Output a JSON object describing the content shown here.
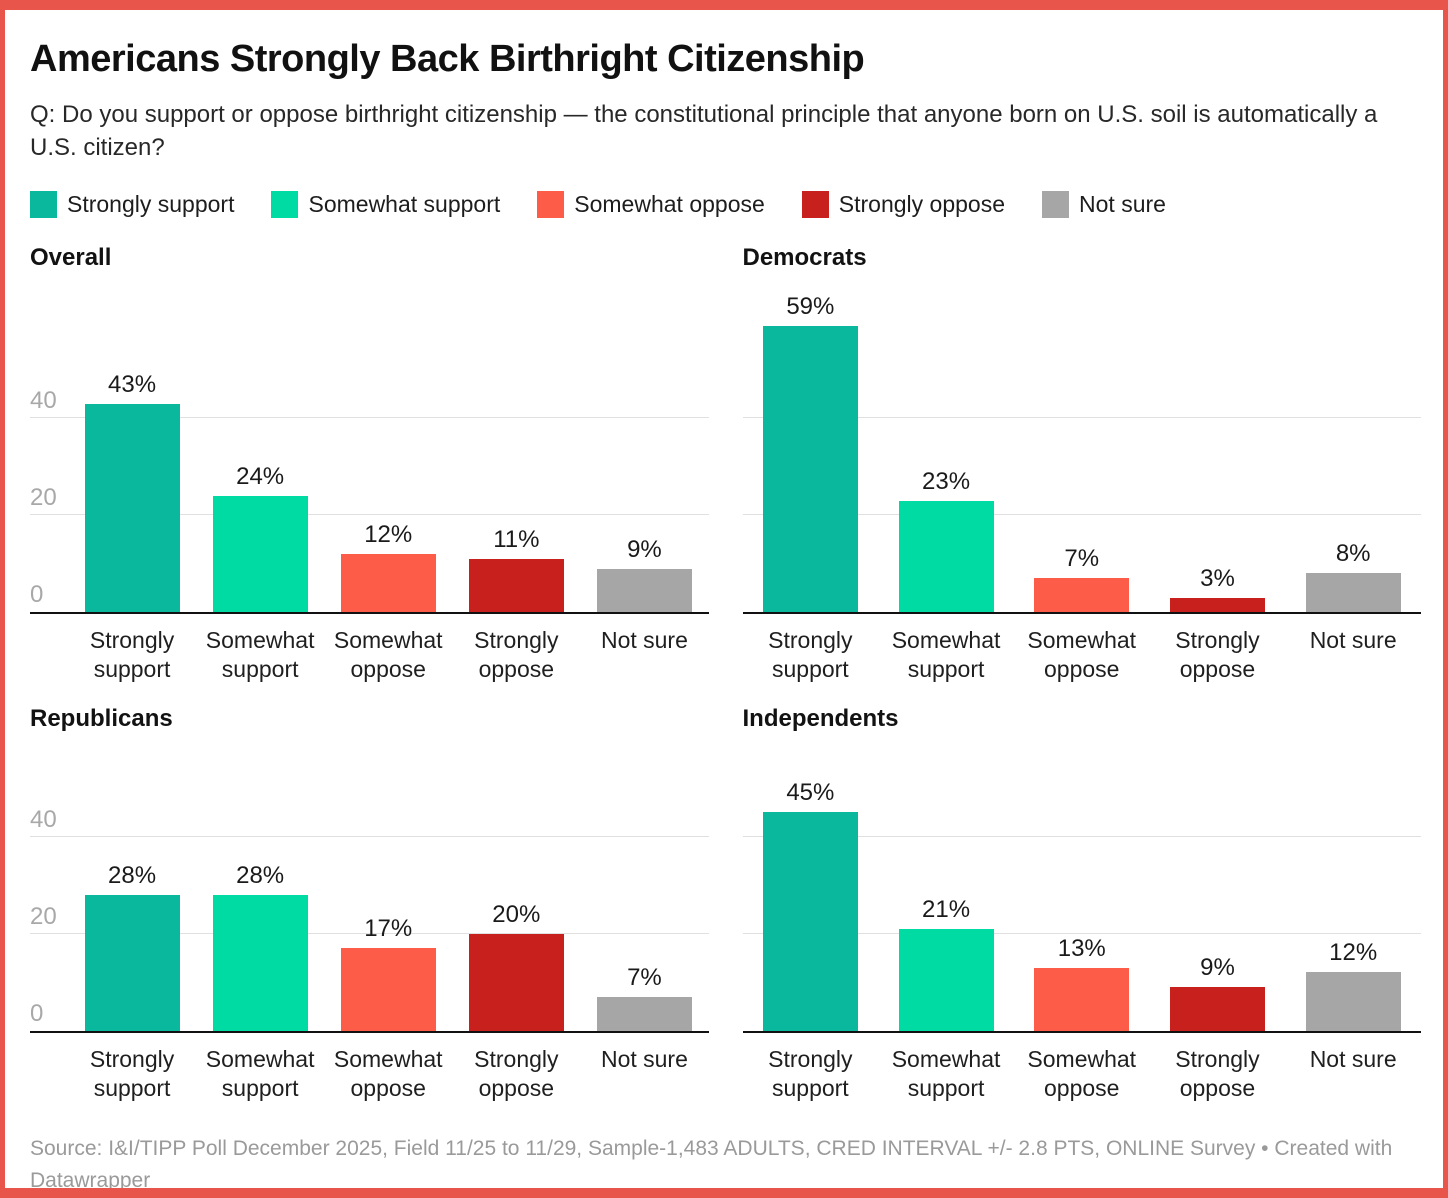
{
  "frame": {
    "border_color": "#e8554b"
  },
  "header": {
    "title": "Americans Strongly Back Birthright Citizenship",
    "subtitle": "Q: Do you support or oppose birthright citizenship — the constitutional principle that anyone born on U.S. soil is automatically a U.S. citizen?"
  },
  "legend": {
    "items": [
      {
        "label": "Strongly support",
        "color": "#0ab89d"
      },
      {
        "label": "Somewhat support",
        "color": "#00dba4"
      },
      {
        "label": "Somewhat oppose",
        "color": "#fd5c49"
      },
      {
        "label": "Strongly oppose",
        "color": "#c7201d"
      },
      {
        "label": "Not sure",
        "color": "#a6a6a6"
      }
    ]
  },
  "chart_data": {
    "type": "bar",
    "unit": "%",
    "title": "Americans Strongly Back Birthright Citizenship",
    "categories": [
      "Strongly support",
      "Somewhat support",
      "Somewhat oppose",
      "Strongly oppose",
      "Not sure"
    ],
    "colors": [
      "#0ab89d",
      "#00dba4",
      "#fd5c49",
      "#c7201d",
      "#a6a6a6"
    ],
    "ylim": [
      0,
      62
    ],
    "yticks": [
      0,
      20,
      40
    ],
    "grid": true,
    "panels": [
      {
        "name": "Overall",
        "values": [
          43,
          24,
          12,
          11,
          9
        ],
        "value_labels": [
          "43%",
          "24%",
          "12%",
          "11%",
          "9%"
        ],
        "yticklabels": true
      },
      {
        "name": "Democrats",
        "values": [
          59,
          23,
          7,
          3,
          8
        ],
        "value_labels": [
          "59%",
          "23%",
          "7%",
          "3%",
          "8%"
        ],
        "yticklabels": false
      },
      {
        "name": "Republicans",
        "values": [
          28,
          28,
          17,
          20,
          7
        ],
        "value_labels": [
          "28%",
          "28%",
          "17%",
          "20%",
          "7%"
        ],
        "yticklabels": true
      },
      {
        "name": "Independents",
        "values": [
          45,
          21,
          13,
          9,
          12
        ],
        "value_labels": [
          "45%",
          "21%",
          "13%",
          "9%",
          "12%"
        ],
        "yticklabels": false
      }
    ]
  },
  "footer": {
    "text": "Source: I&I/TIPP Poll December 2025, Field 11/25 to 11/29, Sample-1,483 ADULTS, CRED INTERVAL +/- 2.8 PTS, ONLINE Survey • Created with Datawrapper"
  }
}
